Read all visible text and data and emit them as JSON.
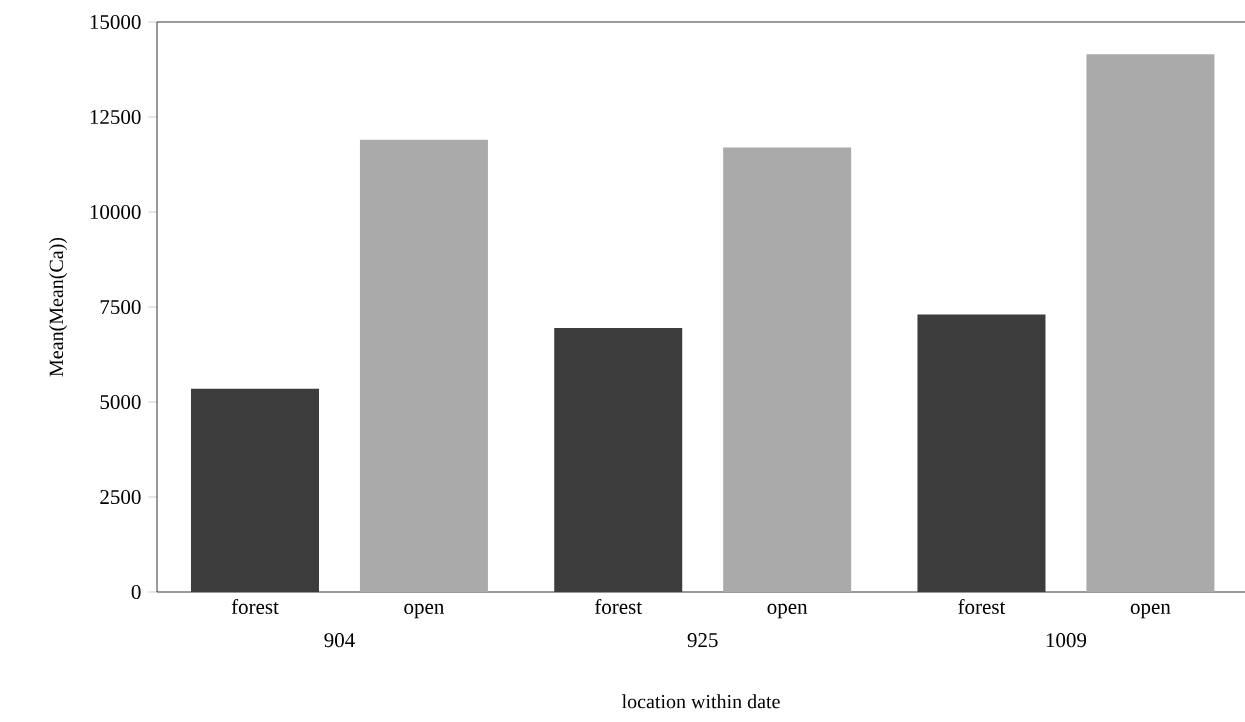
{
  "chart_data": {
    "type": "bar",
    "xlabel": "location within date",
    "ylabel": "Mean(Mean(Ca))",
    "categories": [
      "forest",
      "open",
      "forest",
      "open",
      "forest",
      "open"
    ],
    "values": [
      5350,
      11900,
      6950,
      11700,
      7300,
      14150
    ],
    "colors": [
      "#3c3c3c",
      "#aaaaaa",
      "#3c3c3c",
      "#aaaaaa",
      "#3c3c3c",
      "#aaaaaa"
    ],
    "ylim": [
      0,
      15000
    ],
    "yticks": [
      0,
      2500,
      5000,
      7500,
      10000,
      12500,
      15000
    ],
    "annotations": [
      "904",
      "925",
      "1009"
    ]
  }
}
